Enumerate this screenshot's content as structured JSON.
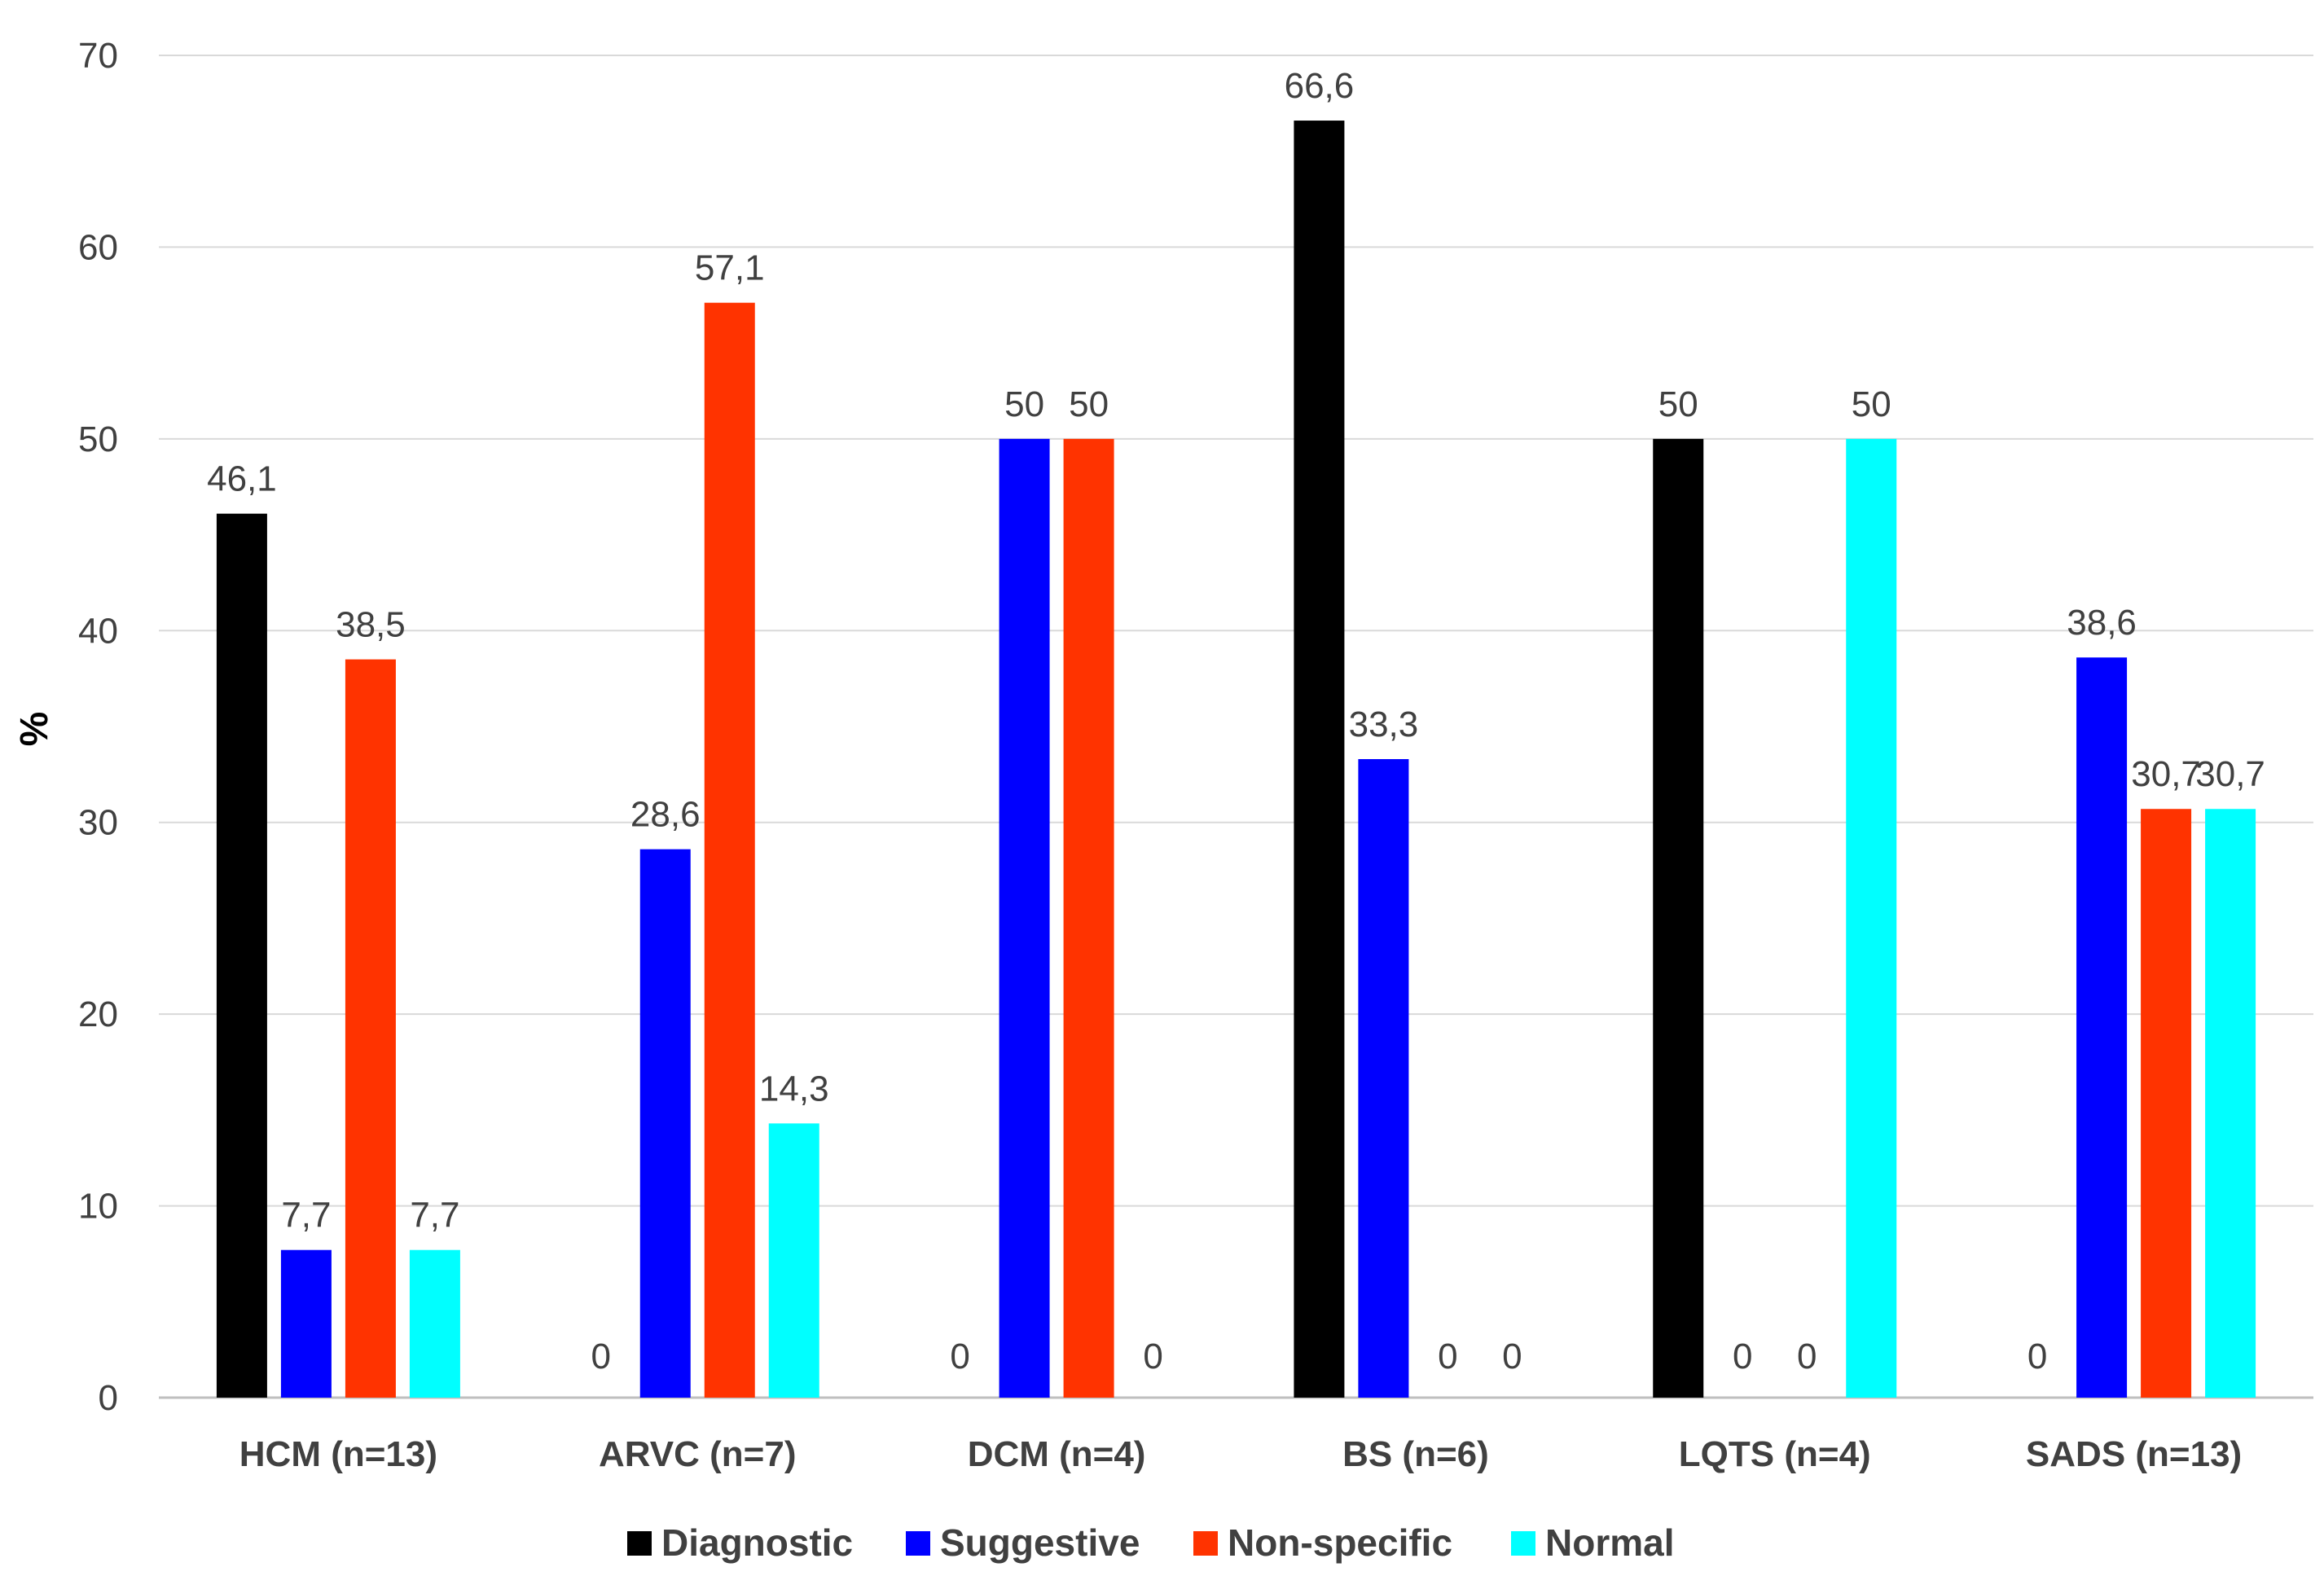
{
  "chart_data": {
    "type": "bar",
    "title": "",
    "xlabel": "",
    "ylabel": "%",
    "ylim": [
      0,
      70
    ],
    "yticks": [
      0,
      10,
      20,
      30,
      40,
      50,
      60,
      70
    ],
    "grid": true,
    "legend_position": "bottom",
    "categories": [
      "HCM (n=13)",
      "ARVC (n=7)",
      "DCM (n=4)",
      "BS (n=6)",
      "LQTS (n=4)",
      "SADS (n=13)"
    ],
    "series": [
      {
        "name": "Diagnostic",
        "color": "#000000",
        "values": [
          46.1,
          0,
          0,
          66.6,
          50,
          0
        ],
        "labels": [
          "46,1",
          "0",
          "0",
          "66,6",
          "50",
          "0"
        ]
      },
      {
        "name": "Suggestive",
        "color": "#0000ff",
        "values": [
          7.7,
          28.6,
          50,
          33.3,
          0,
          38.6
        ],
        "labels": [
          "7,7",
          "28,6",
          "50",
          "33,3",
          "0",
          "38,6"
        ]
      },
      {
        "name": "Non-specific",
        "color": "#ff3300",
        "values": [
          38.5,
          57.1,
          50,
          0,
          0,
          30.7
        ],
        "labels": [
          "38,5",
          "57,1",
          "50",
          "0",
          "0",
          "30,7"
        ]
      },
      {
        "name": "Normal",
        "color": "#00ffff",
        "values": [
          7.7,
          14.3,
          0,
          0,
          50,
          30.7
        ],
        "labels": [
          "7,7",
          "14,3",
          "0",
          "0",
          "50",
          "30,7"
        ]
      }
    ]
  }
}
